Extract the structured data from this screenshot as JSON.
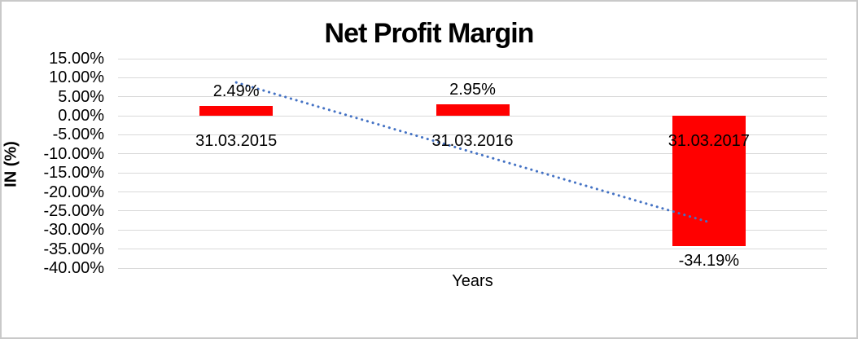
{
  "frame": {
    "background": "#ffffff",
    "border_color": "#c9c9c9"
  },
  "chart_data": {
    "type": "bar",
    "title": "Net Profit Margin",
    "xlabel": "Years",
    "ylabel": "IN (%)",
    "categories": [
      "31.03.2015",
      "31.03.2016",
      "31.03.2017"
    ],
    "values": [
      2.49,
      2.95,
      -34.19
    ],
    "data_labels": [
      "2.49%",
      "2.95%",
      "-34.19%"
    ],
    "ylim": [
      -40,
      15
    ],
    "ytick_step": 5,
    "ytick_labels": [
      "15.00%",
      "10.00%",
      "5.00%",
      "0.00%",
      "-5.00%",
      "-10.00%",
      "-15.00%",
      "-20.00%",
      "-25.00%",
      "-30.00%",
      "-35.00%",
      "-40.00%"
    ],
    "grid": true,
    "legend": "none",
    "bar_color": "#ff0000",
    "gridline_color": "#d9d9d9",
    "text_color": "#000000",
    "trendline": {
      "style": "dotted",
      "color": "#4472c4",
      "start": {
        "category_index": 0,
        "value": 8.76
      },
      "end": {
        "category_index": 2,
        "value": -27.92
      }
    }
  }
}
